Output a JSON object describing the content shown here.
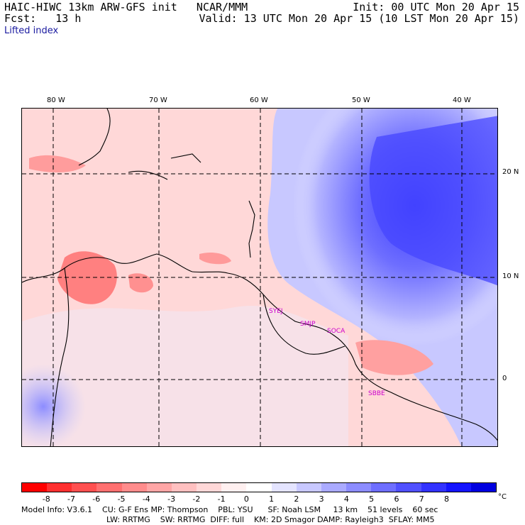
{
  "header": {
    "left_line1": "HAIC-HIWC 13km ARW-GFS init   NCAR/MMM",
    "left_line2": "Fcst:   13 h",
    "right_line1": "Init: 00 UTC Mon 20 Apr 15",
    "right_line2": "Valid: 13 UTC Mon 20 Apr 15 (10 LST Mon 20 Apr 15)",
    "field": "Lifted index"
  },
  "axes": {
    "lon": [
      "80 W",
      "70 W",
      "60 W",
      "50 W",
      "40 W"
    ],
    "lat": [
      "20 N",
      "10 N",
      "0"
    ]
  },
  "stations": [
    "SYEJ",
    "SMJP",
    "SOCA",
    "SBBE"
  ],
  "colorbar": {
    "ticks": [
      "-8",
      "-7",
      "-6",
      "-5",
      "-4",
      "-3",
      "-2",
      "-1",
      "0",
      "1",
      "2",
      "3",
      "4",
      "5",
      "6",
      "7",
      "8"
    ],
    "unit": "°C",
    "colors": [
      "#ff0000",
      "#ff3030",
      "#ff5050",
      "#ff7070",
      "#ff8c8c",
      "#ffa6a6",
      "#ffc0c0",
      "#ffd8d8",
      "#fff0f0",
      "#ffffff",
      "#e4e4ff",
      "#c8c8ff",
      "#aaaaff",
      "#8c8cff",
      "#6e6eff",
      "#5050ff",
      "#3232ff",
      "#1414ff",
      "#0000e0"
    ]
  },
  "footer": {
    "line1": "Model Info: V3.6.1    CU: G-F Ens MP: Thompson    PBL: YSU      SF: Noah LSM     13 km    51 levels    60 sec",
    "line2": "LW: RRTMG    SW: RRTMG  DIFF: full    KM: 2D Smagor DAMP: Rayleigh3  SFLAY: MM5"
  }
}
